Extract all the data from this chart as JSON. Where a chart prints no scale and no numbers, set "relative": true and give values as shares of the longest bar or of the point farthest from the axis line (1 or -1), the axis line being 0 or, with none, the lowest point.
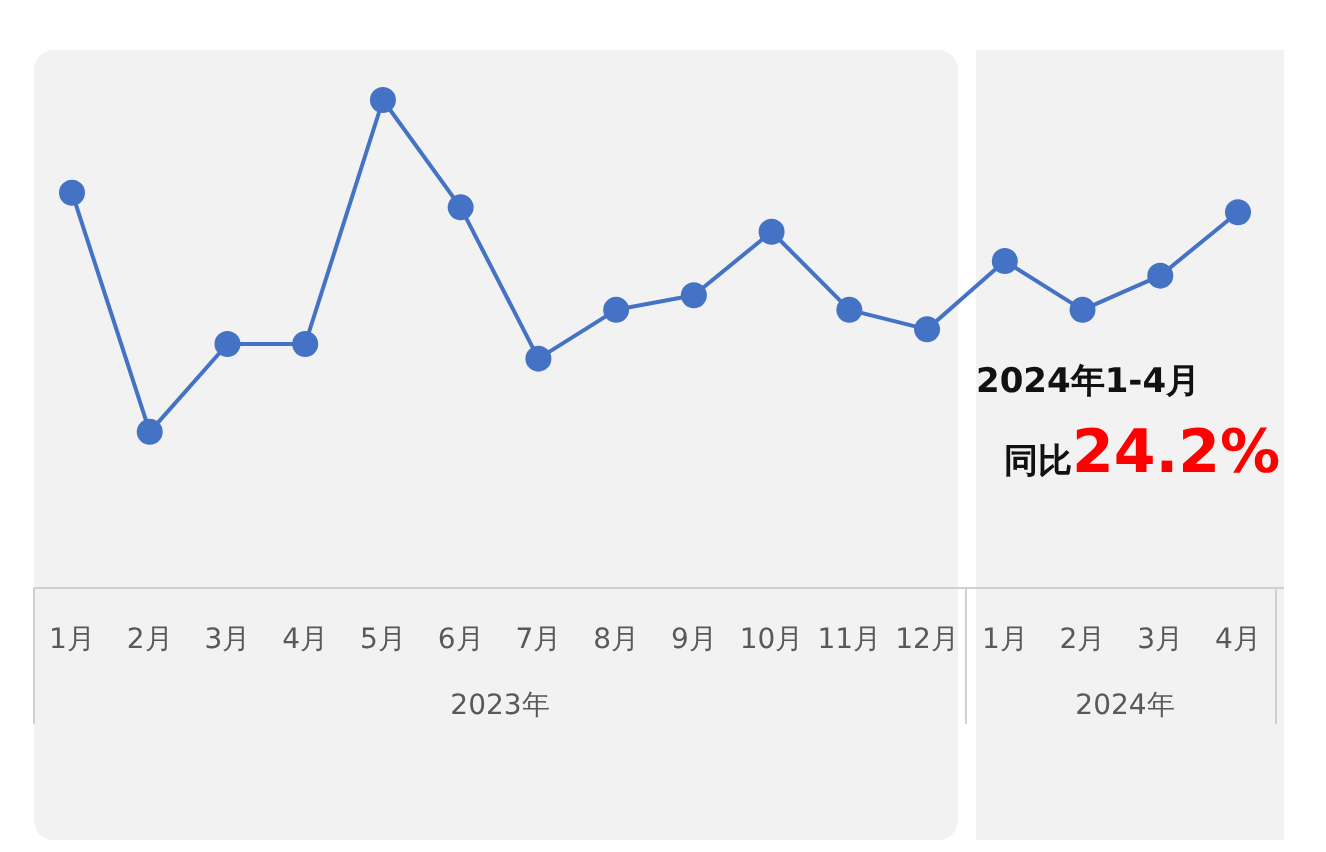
{
  "chart_data": {
    "type": "line",
    "relative": true,
    "marker": "circle",
    "categories": [
      "1月",
      "2月",
      "3月",
      "4月",
      "5月",
      "6月",
      "7月",
      "8月",
      "9月",
      "10月",
      "11月",
      "12月",
      "1月",
      "2月",
      "3月",
      "4月"
    ],
    "series": [
      {
        "color": "#4472c4",
        "values": [
          0.81,
          0.32,
          0.5,
          0.5,
          1,
          0.78,
          0.47,
          0.57,
          0.6,
          0.73,
          0.57,
          0.53,
          0.67,
          0.57,
          0.64,
          0.77
        ]
      }
    ],
    "bands": [
      {
        "axis": "x",
        "from": "1月",
        "to": "12月",
        "color": "#f2f2f2"
      }
    ],
    "annotations": [
      "2023年",
      "2024年",
      "2024年1-4月",
      "同比",
      "24.2%"
    ]
  }
}
